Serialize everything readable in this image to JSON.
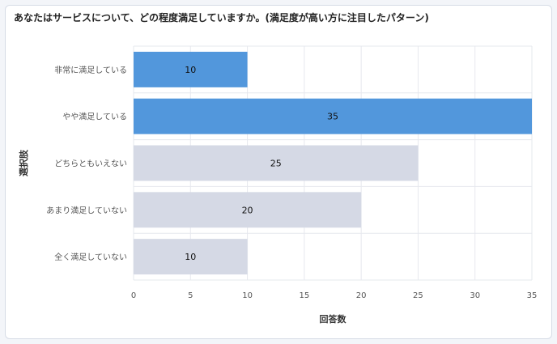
{
  "title": "あなたはサービスについて、どの程度満足していますか。(満足度が高い方に注目したパターン)",
  "colors": {
    "highlight": "#5297dc",
    "muted": "#d5d9e5",
    "grid": "#e6e8ee"
  },
  "chart_data": {
    "type": "bar",
    "orientation": "horizontal",
    "categories": [
      "非常に満足している",
      "やや満足している",
      "どちらともいえない",
      "あまり満足していない",
      "全く満足していない"
    ],
    "values": [
      10,
      35,
      25,
      20,
      10
    ],
    "highlighted": [
      true,
      true,
      false,
      false,
      false
    ],
    "xlabel": "回答数",
    "ylabel": "選択肢",
    "xlim": [
      0,
      35
    ],
    "xticks": [
      0,
      5,
      10,
      15,
      20,
      25,
      30,
      35
    ],
    "grid": true,
    "data_labels": true
  }
}
